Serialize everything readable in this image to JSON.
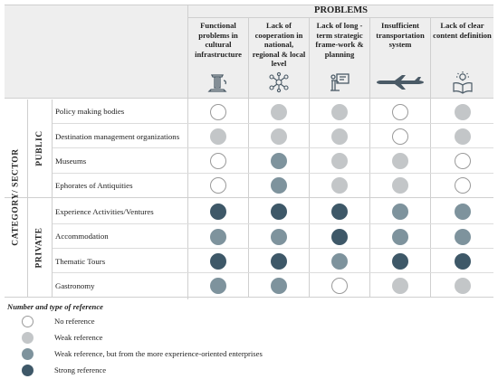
{
  "problems_title": "PROBLEMS",
  "category_label": "CATEGORY/ SECTOR",
  "groups": [
    {
      "label": "PUBLIC"
    },
    {
      "label": "PRIVATE"
    }
  ],
  "columns": [
    {
      "label": "Functional problems in cultural infrastructure",
      "icon": "column-ruin-icon"
    },
    {
      "label": "Lack of cooperation in national, regional & local level",
      "icon": "network-nodes-icon"
    },
    {
      "label": "Lack of long - term strategic frame-work & planning",
      "icon": "presenter-board-icon"
    },
    {
      "label": "Insufficient transportation system",
      "icon": "airplane-icon"
    },
    {
      "label": "Lack of clear content definition",
      "icon": "book-lightbulb-icon"
    }
  ],
  "rows": [
    {
      "label": "Policy making bodies",
      "group": "PUBLIC",
      "levels": [
        "none",
        "weak",
        "weak",
        "none",
        "weak"
      ]
    },
    {
      "label": "Destination management organizations",
      "group": "PUBLIC",
      "levels": [
        "weak",
        "weak",
        "weak",
        "none",
        "weak"
      ]
    },
    {
      "label": "Museums",
      "group": "PUBLIC",
      "levels": [
        "none",
        "weak-exp",
        "weak",
        "weak",
        "none"
      ]
    },
    {
      "label": "Ephorates of Antiquities",
      "group": "PUBLIC",
      "levels": [
        "none",
        "weak-exp",
        "weak",
        "weak",
        "none"
      ]
    },
    {
      "label": "Experience Activities/Ventures",
      "group": "PRIVATE",
      "levels": [
        "strong",
        "strong",
        "strong",
        "weak-exp",
        "weak-exp"
      ]
    },
    {
      "label": "Accommodation",
      "group": "PRIVATE",
      "levels": [
        "weak-exp",
        "weak-exp",
        "strong",
        "weak-exp",
        "weak-exp"
      ]
    },
    {
      "label": "Thematic Tours",
      "group": "PRIVATE",
      "levels": [
        "strong",
        "strong",
        "weak-exp",
        "strong",
        "strong"
      ]
    },
    {
      "label": "Gastronomy",
      "group": "PRIVATE",
      "levels": [
        "weak-exp",
        "weak-exp",
        "none",
        "weak",
        "weak"
      ]
    }
  ],
  "legend": {
    "title": "Number and type of reference",
    "items": [
      {
        "key": "none",
        "label": "No reference",
        "fill": "#ffffff",
        "stroke": "#9a9a9a"
      },
      {
        "key": "weak",
        "label": "Weak reference",
        "fill": "#c3c6c8",
        "stroke": "#c3c6c8"
      },
      {
        "key": "weak-exp",
        "label": "Weak reference, but from the more experience-oriented enterprises",
        "fill": "#7e939d",
        "stroke": "#7e939d"
      },
      {
        "key": "strong",
        "label": "Strong reference",
        "fill": "#3e5868",
        "stroke": "#3e5868"
      }
    ]
  }
}
